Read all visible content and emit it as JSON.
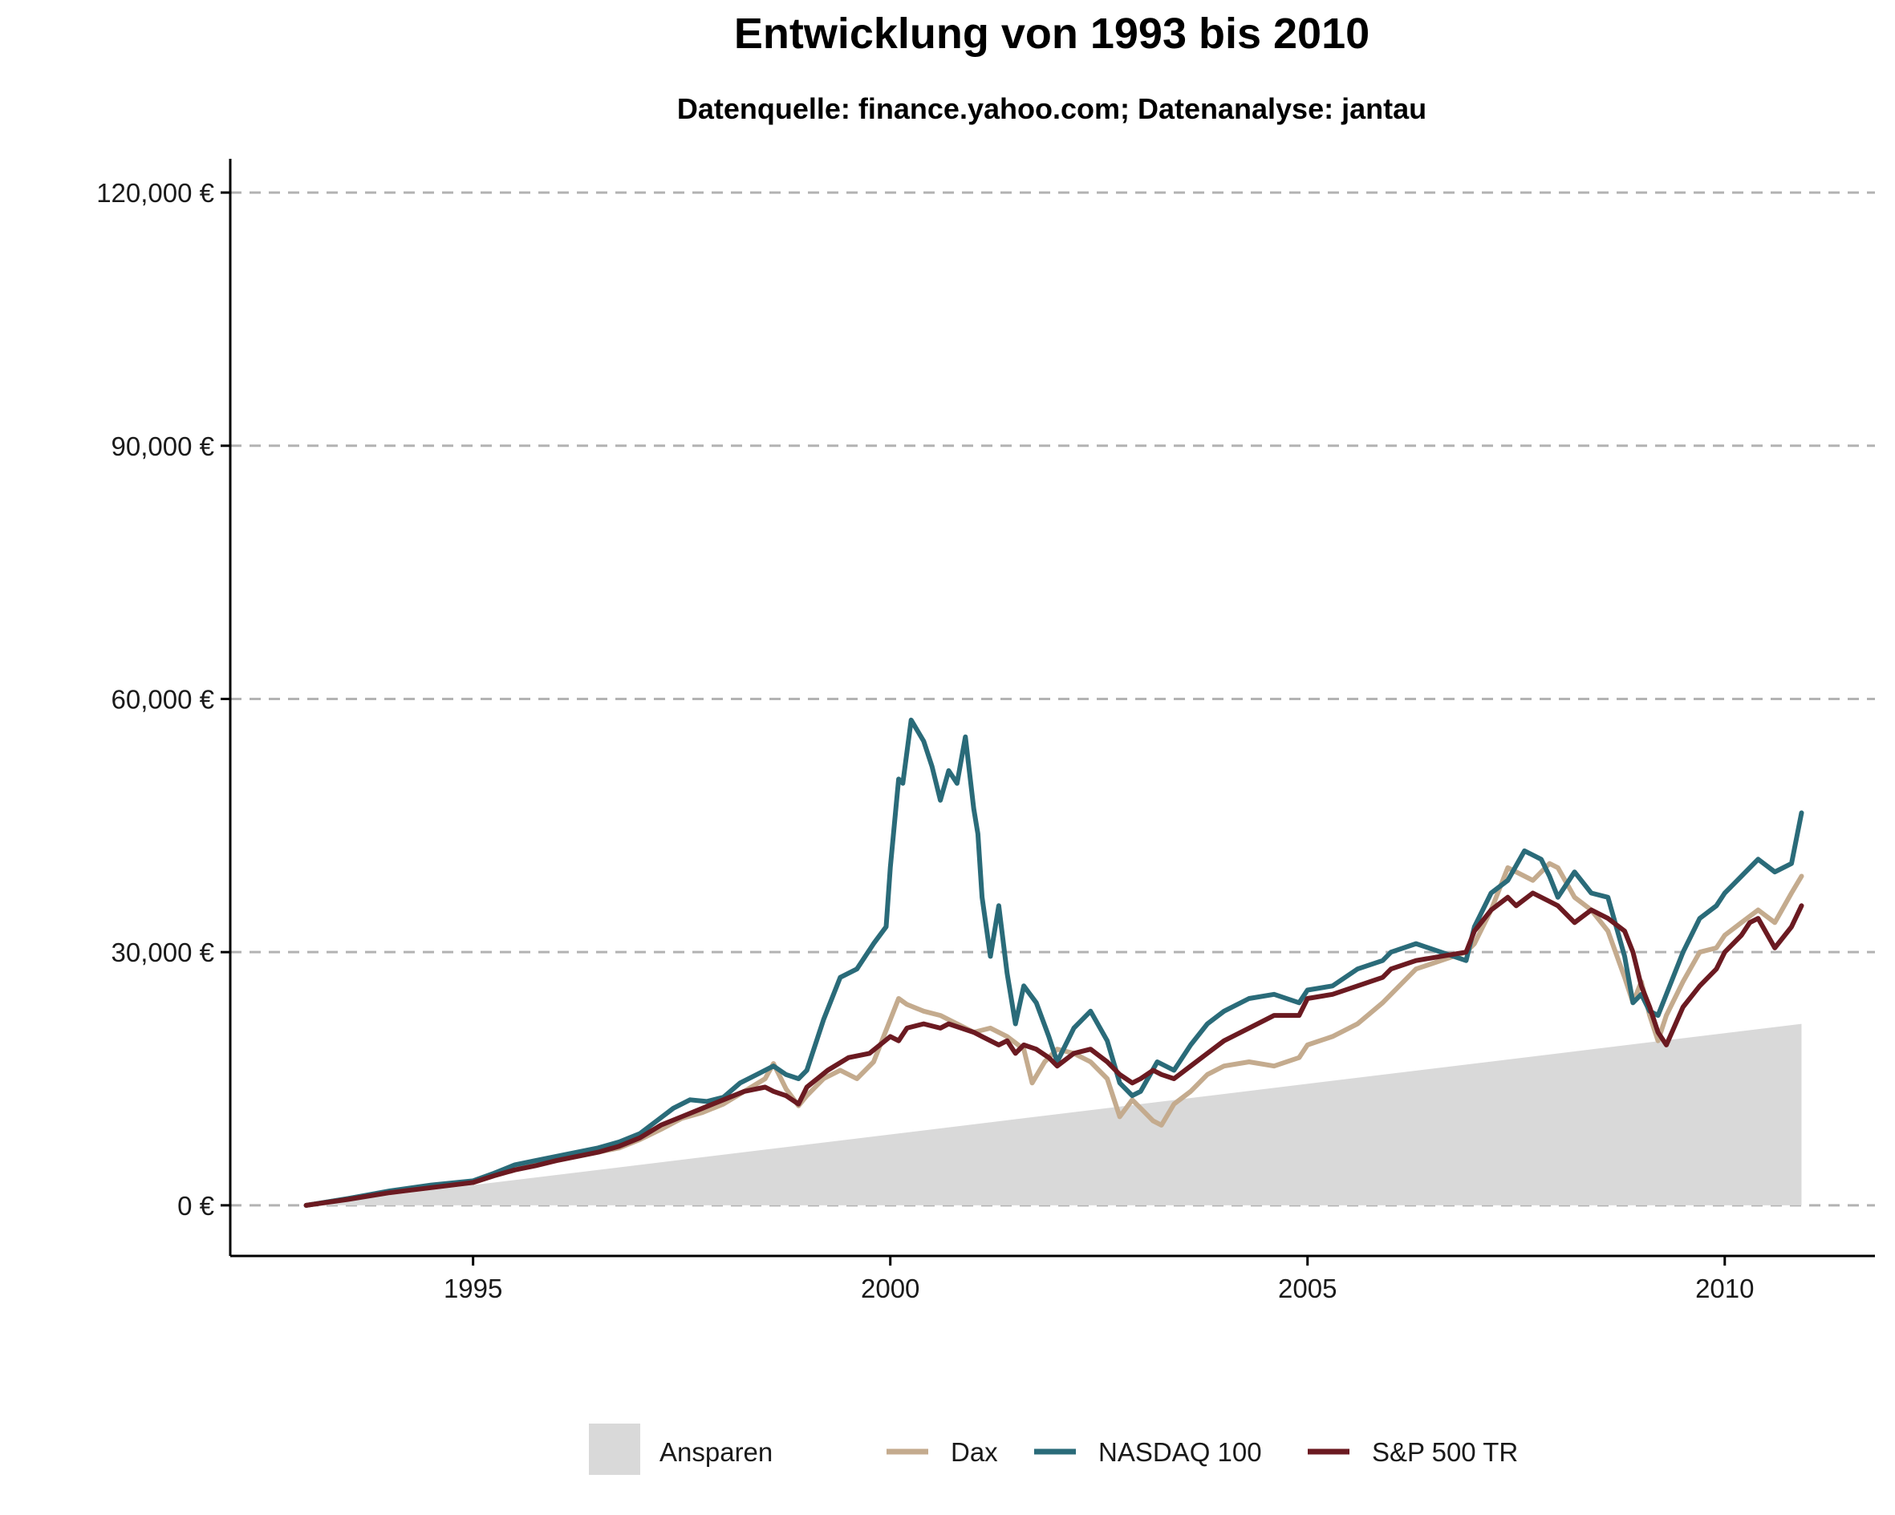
{
  "chart_data": {
    "type": "line",
    "title": "Entwicklung von 1993 bis 2010",
    "subtitle": "Datenquelle: finance.yahoo.com; Datenanalyse: jantau",
    "xlabel": "",
    "ylabel": "",
    "xlim": [
      1992.09,
      2011.8
    ],
    "ylim": [
      -6000,
      124000
    ],
    "x_ticks": [
      {
        "value": 1995,
        "label": "1995"
      },
      {
        "value": 2000,
        "label": "2000"
      },
      {
        "value": 2005,
        "label": "2005"
      },
      {
        "value": 2010,
        "label": "2010"
      }
    ],
    "y_ticks": [
      {
        "value": 0,
        "label": "0 €"
      },
      {
        "value": 30000,
        "label": "30,000 €"
      },
      {
        "value": 60000,
        "label": "60,000 €"
      },
      {
        "value": 90000,
        "label": "90,000 €"
      },
      {
        "value": 120000,
        "label": "120,000 €"
      }
    ],
    "grid": "horizontal-dashed",
    "legend_position": "bottom",
    "area": {
      "name": "Ansparen",
      "color": "#d9d9d9",
      "x": [
        1993.0,
        2010.92
      ],
      "y": [
        0,
        21500
      ]
    },
    "series": [
      {
        "name": "Dax",
        "color": "#c4ab8e",
        "x": [
          1993.0,
          1993.5,
          1994.0,
          1994.5,
          1995.0,
          1995.25,
          1995.5,
          1995.75,
          1996.0,
          1996.25,
          1996.5,
          1996.75,
          1997.0,
          1997.25,
          1997.5,
          1997.75,
          1998.0,
          1998.25,
          1998.5,
          1998.6,
          1998.75,
          1998.9,
          1999.0,
          1999.2,
          1999.4,
          1999.6,
          1999.8,
          2000.0,
          2000.1,
          2000.2,
          2000.4,
          2000.6,
          2000.8,
          2001.0,
          2001.2,
          2001.4,
          2001.6,
          2001.7,
          2001.85,
          2002.0,
          2002.2,
          2002.4,
          2002.6,
          2002.75,
          2002.9,
          2003.0,
          2003.15,
          2003.25,
          2003.4,
          2003.6,
          2003.8,
          2004.0,
          2004.3,
          2004.6,
          2004.9,
          2005.0,
          2005.3,
          2005.6,
          2005.9,
          2006.0,
          2006.3,
          2006.6,
          2006.9,
          2007.0,
          2007.2,
          2007.4,
          2007.5,
          2007.7,
          2007.9,
          2008.0,
          2008.2,
          2008.4,
          2008.6,
          2008.8,
          2008.9,
          2009.0,
          2009.1,
          2009.2,
          2009.3,
          2009.5,
          2009.7,
          2009.9,
          2010.0,
          2010.2,
          2010.4,
          2010.6,
          2010.8,
          2010.92
        ],
        "y": [
          0,
          800,
          1600,
          2300,
          2700,
          3500,
          4200,
          4800,
          5300,
          5800,
          6300,
          6800,
          7800,
          9000,
          10300,
          11000,
          12000,
          13500,
          15000,
          16800,
          13800,
          11800,
          13000,
          15000,
          16000,
          15000,
          17000,
          22000,
          24500,
          23800,
          23000,
          22500,
          21500,
          20500,
          21000,
          20000,
          18500,
          14500,
          17000,
          18500,
          18000,
          17000,
          15000,
          10500,
          12500,
          11500,
          10000,
          9500,
          12000,
          13500,
          15500,
          16500,
          17000,
          16500,
          17500,
          19000,
          20000,
          21500,
          24000,
          25000,
          28000,
          29000,
          30000,
          31000,
          35000,
          40000,
          39500,
          38500,
          40500,
          40000,
          36500,
          35000,
          32500,
          27000,
          24000,
          26500,
          22500,
          19500,
          22500,
          26500,
          30000,
          30500,
          32000,
          33500,
          35000,
          33500,
          37000,
          39000
        ]
      },
      {
        "name": "NASDAQ 100",
        "color": "#2a6b79",
        "x": [
          1993.0,
          1993.5,
          1994.0,
          1994.5,
          1995.0,
          1995.25,
          1995.5,
          1995.75,
          1996.0,
          1996.25,
          1996.5,
          1996.75,
          1997.0,
          1997.2,
          1997.4,
          1997.6,
          1997.8,
          1998.0,
          1998.2,
          1998.4,
          1998.6,
          1998.75,
          1998.9,
          1999.0,
          1999.2,
          1999.4,
          1999.6,
          1999.8,
          1999.95,
          2000.0,
          2000.1,
          2000.15,
          2000.25,
          2000.4,
          2000.5,
          2000.6,
          2000.7,
          2000.8,
          2000.9,
          2001.0,
          2001.05,
          2001.1,
          2001.2,
          2001.3,
          2001.4,
          2001.5,
          2001.6,
          2001.75,
          2001.9,
          2002.0,
          2002.2,
          2002.4,
          2002.6,
          2002.75,
          2002.9,
          2003.0,
          2003.2,
          2003.4,
          2003.6,
          2003.8,
          2004.0,
          2004.3,
          2004.6,
          2004.9,
          2005.0,
          2005.3,
          2005.6,
          2005.9,
          2006.0,
          2006.3,
          2006.6,
          2006.9,
          2007.0,
          2007.2,
          2007.4,
          2007.6,
          2007.8,
          2007.9,
          2008.0,
          2008.2,
          2008.4,
          2008.6,
          2008.8,
          2008.9,
          2009.0,
          2009.1,
          2009.2,
          2009.3,
          2009.5,
          2009.7,
          2009.9,
          2010.0,
          2010.2,
          2010.4,
          2010.6,
          2010.8,
          2010.92
        ],
        "y": [
          0,
          800,
          1700,
          2400,
          2900,
          3800,
          4800,
          5300,
          5800,
          6300,
          6800,
          7500,
          8500,
          10000,
          11500,
          12500,
          12300,
          12800,
          14500,
          15500,
          16500,
          15500,
          15000,
          16000,
          22000,
          27000,
          28000,
          31000,
          33000,
          40000,
          50500,
          50000,
          57500,
          55000,
          52000,
          48000,
          51500,
          50000,
          55500,
          47000,
          44000,
          36500,
          29500,
          35500,
          27500,
          21500,
          26000,
          24000,
          20000,
          17000,
          21000,
          23000,
          19500,
          14500,
          13000,
          13500,
          17000,
          16000,
          19000,
          21500,
          23000,
          24500,
          25000,
          24000,
          25500,
          26000,
          28000,
          29000,
          30000,
          31000,
          30000,
          29000,
          33000,
          37000,
          38500,
          42000,
          41000,
          39000,
          36500,
          39500,
          37000,
          36500,
          29500,
          24000,
          25000,
          23000,
          22500,
          25000,
          30000,
          34000,
          35500,
          37000,
          39000,
          41000,
          39500,
          40500,
          46500
        ]
      },
      {
        "name": "S&P 500 TR",
        "color": "#6b1a21",
        "x": [
          1993.0,
          1993.5,
          1994.0,
          1994.5,
          1995.0,
          1995.25,
          1995.5,
          1995.75,
          1996.0,
          1996.25,
          1996.5,
          1996.75,
          1997.0,
          1997.25,
          1997.5,
          1997.75,
          1998.0,
          1998.25,
          1998.5,
          1998.6,
          1998.75,
          1998.9,
          1999.0,
          1999.25,
          1999.5,
          1999.75,
          2000.0,
          2000.1,
          2000.2,
          2000.4,
          2000.6,
          2000.7,
          2000.85,
          2001.0,
          2001.1,
          2001.2,
          2001.3,
          2001.4,
          2001.5,
          2001.6,
          2001.75,
          2001.9,
          2002.0,
          2002.2,
          2002.4,
          2002.6,
          2002.75,
          2002.9,
          2003.0,
          2003.15,
          2003.25,
          2003.4,
          2003.6,
          2003.8,
          2004.0,
          2004.3,
          2004.6,
          2004.9,
          2005.0,
          2005.3,
          2005.6,
          2005.9,
          2006.0,
          2006.3,
          2006.6,
          2006.9,
          2007.0,
          2007.2,
          2007.4,
          2007.5,
          2007.7,
          2007.9,
          2008.0,
          2008.2,
          2008.4,
          2008.6,
          2008.8,
          2008.9,
          2009.0,
          2009.1,
          2009.2,
          2009.3,
          2009.5,
          2009.7,
          2009.9,
          2010.0,
          2010.2,
          2010.3,
          2010.4,
          2010.6,
          2010.8,
          2010.92
        ],
        "y": [
          0,
          700,
          1500,
          2100,
          2700,
          3500,
          4200,
          4700,
          5300,
          5800,
          6300,
          7000,
          8000,
          9500,
          10500,
          11500,
          12500,
          13500,
          14000,
          13500,
          13000,
          12000,
          14000,
          16000,
          17500,
          18000,
          20000,
          19500,
          21000,
          21500,
          21000,
          21500,
          21000,
          20500,
          20000,
          19500,
          19000,
          19500,
          18000,
          19000,
          18500,
          17500,
          16500,
          18000,
          18500,
          17000,
          15500,
          14500,
          15000,
          16000,
          15500,
          15000,
          16500,
          18000,
          19500,
          21000,
          22500,
          22500,
          24500,
          25000,
          26000,
          27000,
          28000,
          29000,
          29500,
          30000,
          32500,
          35000,
          36500,
          35500,
          37000,
          36000,
          35500,
          33500,
          35000,
          34000,
          32500,
          30000,
          26000,
          23500,
          20500,
          19000,
          23500,
          26000,
          28000,
          30000,
          32000,
          33500,
          34000,
          30500,
          33000,
          35500
        ]
      }
    ]
  }
}
